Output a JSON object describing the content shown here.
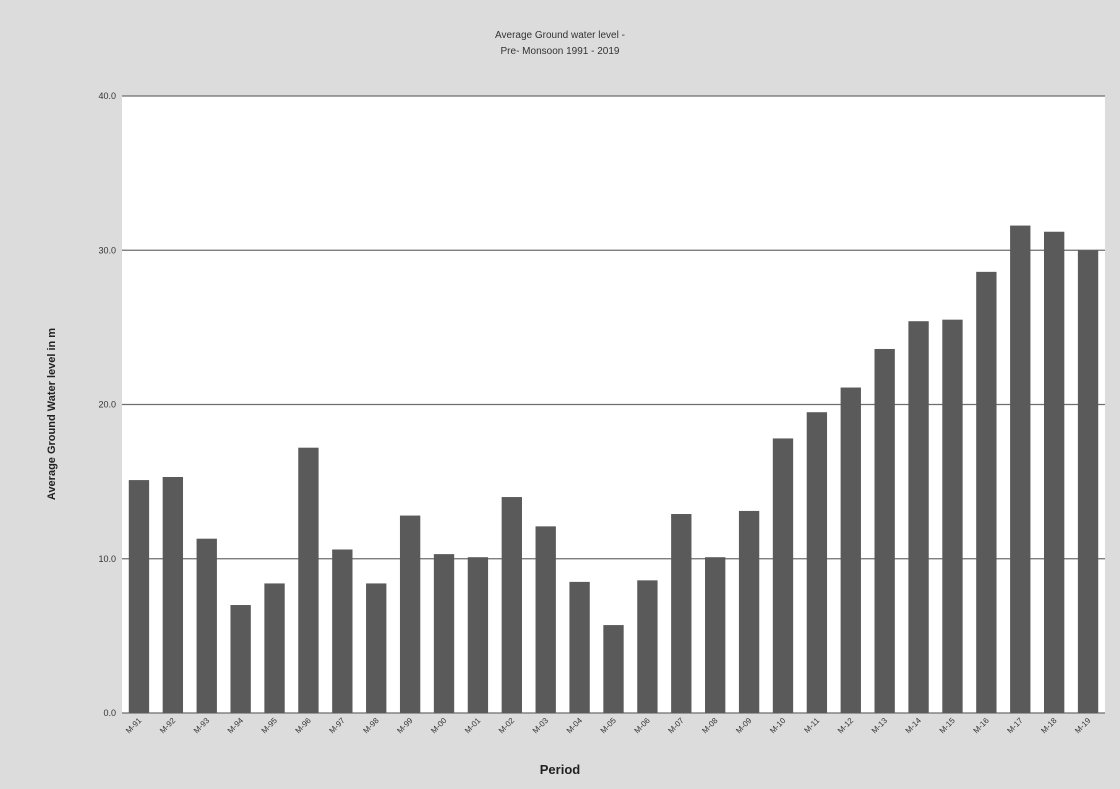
{
  "chart_data": {
    "type": "bar",
    "title": "Average Ground water level -",
    "subtitle": "Pre- Monsoon 1991 - 2019",
    "xlabel": "Period",
    "ylabel": "Average Ground Water level in m",
    "ylim": [
      0,
      40
    ],
    "yticks": [
      "0.0",
      "10.0",
      "20.0",
      "30.0",
      "40.0"
    ],
    "grid": true,
    "legend": "none",
    "bar_color": "#5a5a5a",
    "categories": [
      "M-91",
      "M-92",
      "M-93",
      "M-94",
      "M-95",
      "M-96",
      "M-97",
      "M-98",
      "M-99",
      "M-00",
      "M-01",
      "M-02",
      "M-03",
      "M-04",
      "M-05",
      "M-06",
      "M-07",
      "M-08",
      "M-09",
      "M-10",
      "M-11",
      "M-12",
      "M-13",
      "M-14",
      "M-15",
      "M-16",
      "M-17",
      "M-18",
      "M-19"
    ],
    "values": [
      15.1,
      15.3,
      11.3,
      7.0,
      8.4,
      17.2,
      10.6,
      8.4,
      12.8,
      10.3,
      10.1,
      14.0,
      12.1,
      8.5,
      5.7,
      8.6,
      12.9,
      10.1,
      13.1,
      17.8,
      19.5,
      21.1,
      23.6,
      25.4,
      25.5,
      28.6,
      31.6,
      31.2,
      30.0
    ]
  }
}
